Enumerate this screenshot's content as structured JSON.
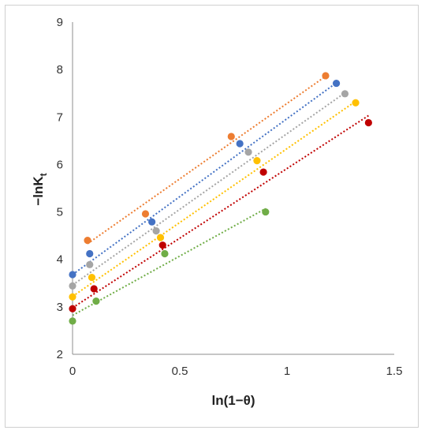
{
  "chart_data": {
    "type": "scatter",
    "xlabel": "ln(1−θ)",
    "ylabel_main": "−lnK",
    "ylabel_sub": "t",
    "xlim": [
      0,
      1.5
    ],
    "ylim": [
      2,
      9
    ],
    "x_ticks": [
      "0",
      "0.5",
      "1",
      "1.5"
    ],
    "y_ticks": [
      "2",
      "3",
      "4",
      "5",
      "6",
      "7",
      "8",
      "9"
    ],
    "grid": false,
    "legend": "none",
    "trendlines": "linear, dotted",
    "series": [
      {
        "color": "#ED7D31",
        "points": [
          [
            0.07,
            4.4
          ],
          [
            0.34,
            4.96
          ],
          [
            0.74,
            6.59
          ],
          [
            1.18,
            7.87
          ]
        ],
        "fit": [
          [
            0.07,
            4.33
          ],
          [
            1.19,
            7.89
          ]
        ]
      },
      {
        "color": "#4472C4",
        "points": [
          [
            0.0,
            3.68
          ],
          [
            0.08,
            4.12
          ],
          [
            0.37,
            4.79
          ],
          [
            0.78,
            6.44
          ],
          [
            1.23,
            7.71
          ]
        ],
        "fit": [
          [
            0.0,
            3.68
          ],
          [
            1.23,
            7.72
          ]
        ]
      },
      {
        "color": "#A5A5A5",
        "points": [
          [
            0.0,
            3.44
          ],
          [
            0.08,
            3.89
          ],
          [
            0.39,
            4.6
          ],
          [
            0.82,
            6.26
          ],
          [
            1.27,
            7.49
          ]
        ],
        "fit": [
          [
            0.0,
            3.46
          ],
          [
            1.27,
            7.51
          ]
        ]
      },
      {
        "color": "#FFC000",
        "points": [
          [
            0.0,
            3.21
          ],
          [
            0.09,
            3.62
          ],
          [
            0.41,
            4.46
          ],
          [
            0.86,
            6.08
          ],
          [
            1.32,
            7.3
          ]
        ],
        "fit": [
          [
            0.0,
            3.22
          ],
          [
            1.32,
            7.33
          ]
        ]
      },
      {
        "color": "#C00000",
        "points": [
          [
            0.0,
            2.96
          ],
          [
            0.1,
            3.38
          ],
          [
            0.42,
            4.3
          ],
          [
            0.89,
            5.84
          ],
          [
            1.38,
            6.88
          ]
        ],
        "fit": [
          [
            0.0,
            2.98
          ],
          [
            1.38,
            7.03
          ]
        ]
      },
      {
        "color": "#70AD47",
        "points": [
          [
            0.0,
            2.7
          ],
          [
            0.11,
            3.12
          ],
          [
            0.43,
            4.12
          ],
          [
            0.9,
            5.0
          ]
        ],
        "fit": [
          [
            0.0,
            2.82
          ],
          [
            0.9,
            5.07
          ]
        ]
      }
    ]
  }
}
